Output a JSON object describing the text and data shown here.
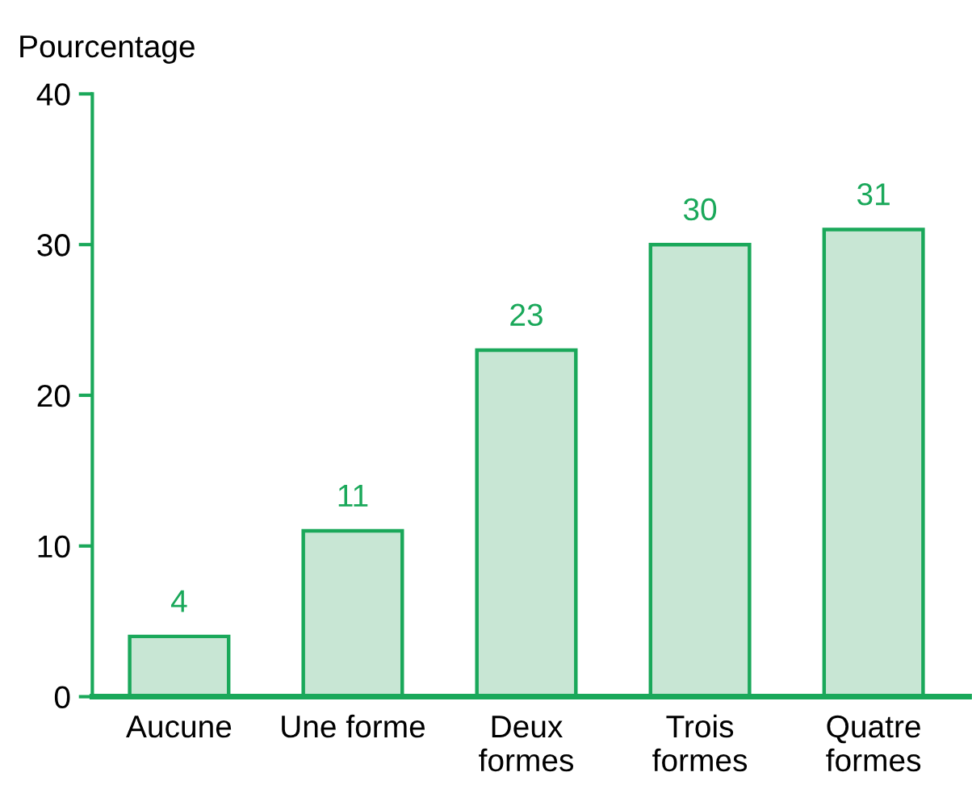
{
  "chart_data": {
    "type": "bar",
    "ylabel": "Pourcentage",
    "categories": [
      "Aucune",
      "Une forme",
      "Deux\nformes",
      "Trois\nformes",
      "Quatre\nformes"
    ],
    "values": [
      4,
      11,
      23,
      30,
      31
    ],
    "color": "#c8e6d4",
    "ylim": [
      0,
      40
    ],
    "yticks": [
      0,
      10,
      20,
      30,
      40
    ],
    "grid": false,
    "data_labels": true
  }
}
